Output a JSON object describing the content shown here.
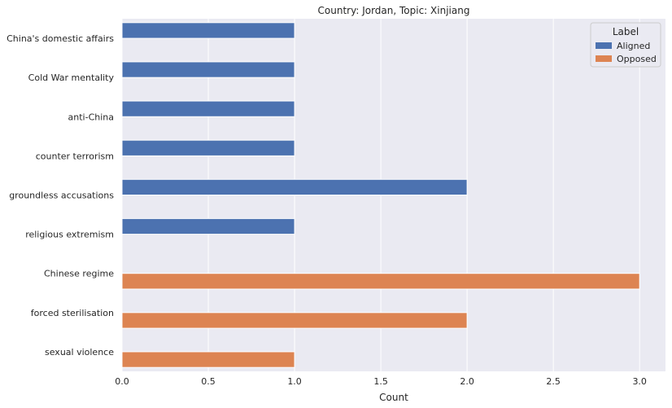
{
  "chart_data": {
    "type": "bar",
    "orientation": "horizontal",
    "title": "Country: Jordan, Topic: Xinjiang",
    "xlabel": "Count",
    "ylabel": "",
    "xlim": [
      0,
      3.15
    ],
    "xticks": [
      "0.0",
      "0.5",
      "1.0",
      "1.5",
      "2.0",
      "2.5",
      "3.0"
    ],
    "xtick_values": [
      0,
      0.5,
      1.0,
      1.5,
      2.0,
      2.5,
      3.0
    ],
    "categories": [
      "China's domestic affairs",
      "Cold War mentality",
      "anti-China",
      "counter terrorism",
      "groundless accusations",
      "religious extremism",
      "Chinese regime",
      "forced sterilisation",
      "sexual violence"
    ],
    "series": [
      {
        "name": "Aligned",
        "color": "#4c72b0",
        "values": [
          1,
          1,
          1,
          1,
          2,
          1,
          0,
          0,
          0
        ]
      },
      {
        "name": "Opposed",
        "color": "#dd8452",
        "values": [
          0,
          0,
          0,
          0,
          0,
          0,
          3,
          2,
          1
        ]
      }
    ],
    "legend": {
      "title": "Label",
      "placement": "top-right"
    },
    "grid": true,
    "background": "#eaeaf2"
  }
}
